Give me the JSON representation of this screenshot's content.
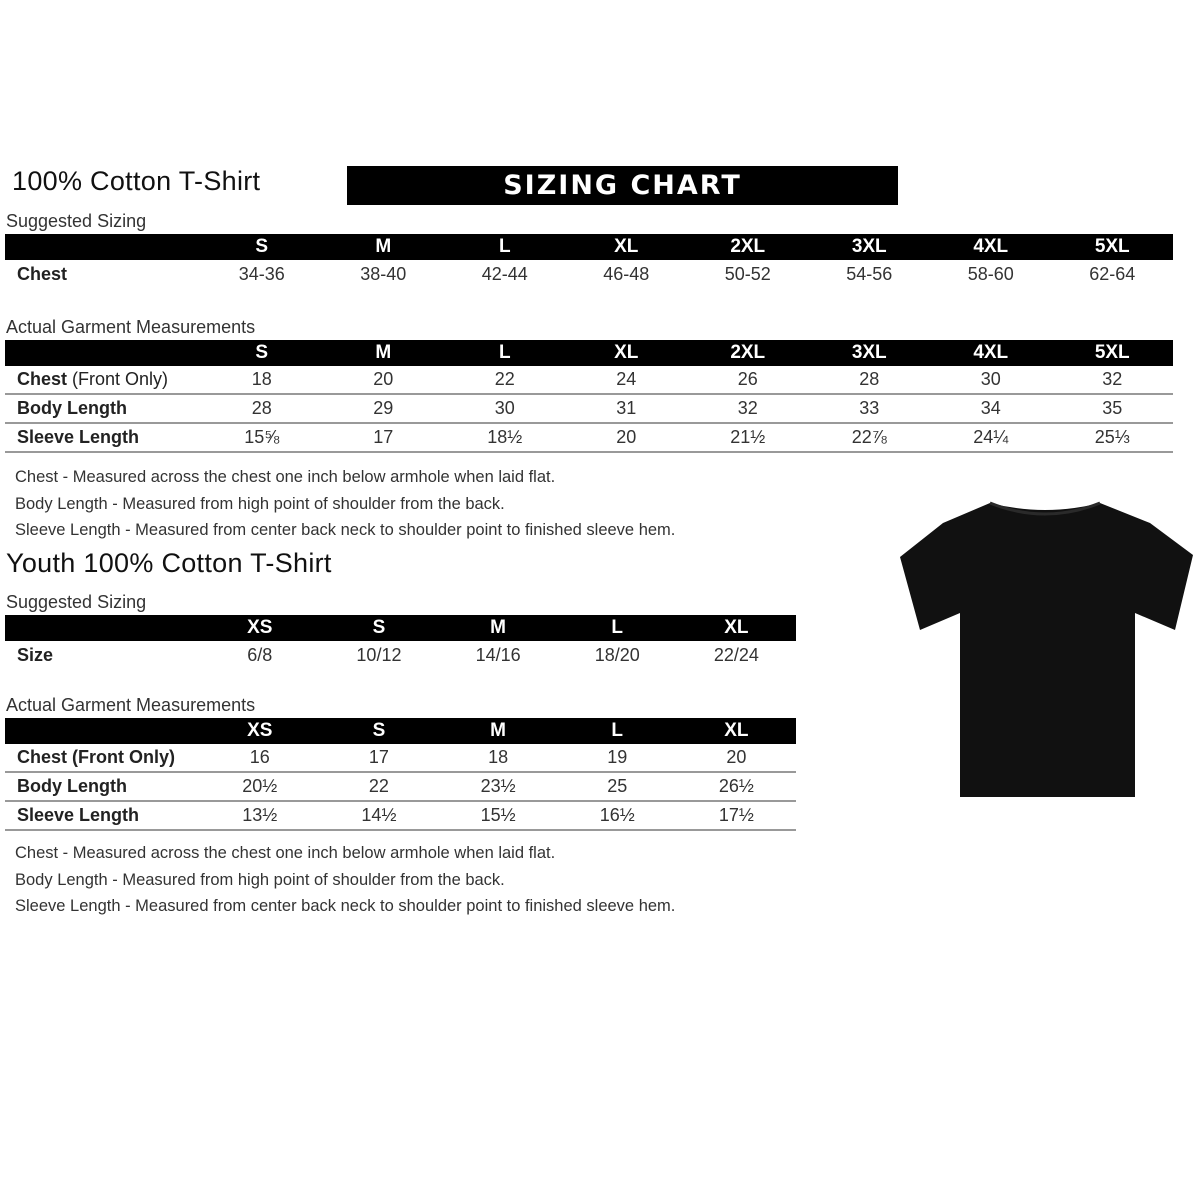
{
  "adult": {
    "title": "100% Cotton T-Shirt",
    "banner": "SIZING CHART",
    "suggested_label": "Suggested Sizing",
    "sizes": [
      "S",
      "M",
      "L",
      "XL",
      "2XL",
      "3XL",
      "4XL",
      "5XL"
    ],
    "suggested_rows": [
      {
        "label": "Chest",
        "values": [
          "34-36",
          "38-40",
          "42-44",
          "46-48",
          "50-52",
          "54-56",
          "58-60",
          "62-64"
        ]
      }
    ],
    "actual_label": "Actual Garment Measurements",
    "actual_rows": [
      {
        "label": "Chest",
        "label_extra": " (Front Only)",
        "values": [
          "18",
          "20",
          "22",
          "24",
          "26",
          "28",
          "30",
          "32"
        ]
      },
      {
        "label": "Body Length",
        "label_extra": "",
        "values": [
          "28",
          "29",
          "30",
          "31",
          "32",
          "33",
          "34",
          "35"
        ]
      },
      {
        "label": "Sleeve Length",
        "label_extra": "",
        "values": [
          "15⅝",
          "17",
          "18½",
          "20",
          "21½",
          "22⅞",
          "24¼",
          "25⅓"
        ]
      }
    ],
    "notes": [
      "Chest - Measured across the chest one inch below armhole when laid flat.",
      "Body Length - Measured from high point of shoulder from the back.",
      "Sleeve Length - Measured from center back neck to shoulder point to finished sleeve hem."
    ]
  },
  "youth": {
    "title": "Youth 100% Cotton T-Shirt",
    "suggested_label": "Suggested Sizing",
    "sizes": [
      "XS",
      "S",
      "M",
      "L",
      "XL"
    ],
    "suggested_rows": [
      {
        "label": "Size",
        "values": [
          "6/8",
          "10/12",
          "14/16",
          "18/20",
          "22/24"
        ]
      }
    ],
    "actual_label": "Actual Garment Measurements",
    "actual_rows": [
      {
        "label": "Chest (Front Only)",
        "values": [
          "16",
          "17",
          "18",
          "19",
          "20"
        ]
      },
      {
        "label": "Body Length",
        "values": [
          "20½",
          "22",
          "23½",
          "25",
          "26½"
        ]
      },
      {
        "label": "Sleeve Length",
        "values": [
          "13½",
          "14½",
          "15½",
          "16½",
          "17½"
        ]
      }
    ],
    "notes": [
      "Chest - Measured across the chest one inch below armhole when laid flat.",
      "Body Length - Measured from high point of shoulder from the back.",
      "Sleeve Length - Measured from center back neck to shoulder point to finished sleeve hem."
    ]
  },
  "image": {
    "icon": "tshirt-icon",
    "color": "#111111"
  }
}
